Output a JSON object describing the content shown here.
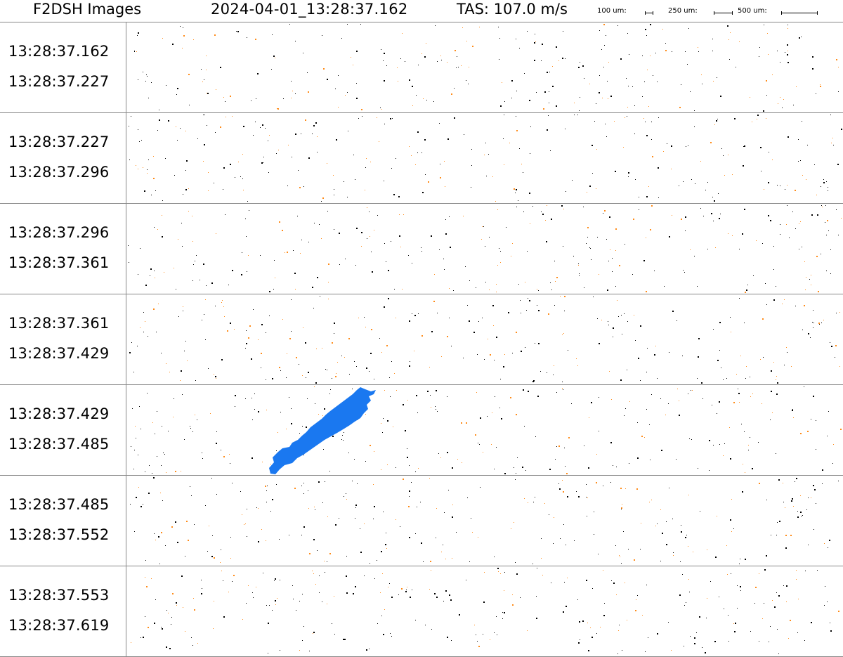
{
  "header": {
    "title": "F2DSH Images",
    "timestamp": "2024-04-01_13:28:37.162",
    "tas": "TAS: 107.0 m/s",
    "scale_bars": [
      {
        "label": "100 um:"
      },
      {
        "label": "250 um:"
      },
      {
        "label": "500 um:"
      }
    ]
  },
  "colors": {
    "particle": "#1a78f0",
    "noise_dark": "#000000",
    "noise_orange": "#ff8c1a",
    "divider": "#888888"
  },
  "strips": [
    {
      "start": "13:28:37.162",
      "end": "13:28:37.227"
    },
    {
      "start": "13:28:37.227",
      "end": "13:28:37.296"
    },
    {
      "start": "13:28:37.296",
      "end": "13:28:37.361"
    },
    {
      "start": "13:28:37.361",
      "end": "13:28:37.429"
    },
    {
      "start": "13:28:37.429",
      "end": "13:28:37.485"
    },
    {
      "start": "13:28:37.485",
      "end": "13:28:37.552"
    },
    {
      "start": "13:28:37.553",
      "end": "13:28:37.619"
    }
  ]
}
